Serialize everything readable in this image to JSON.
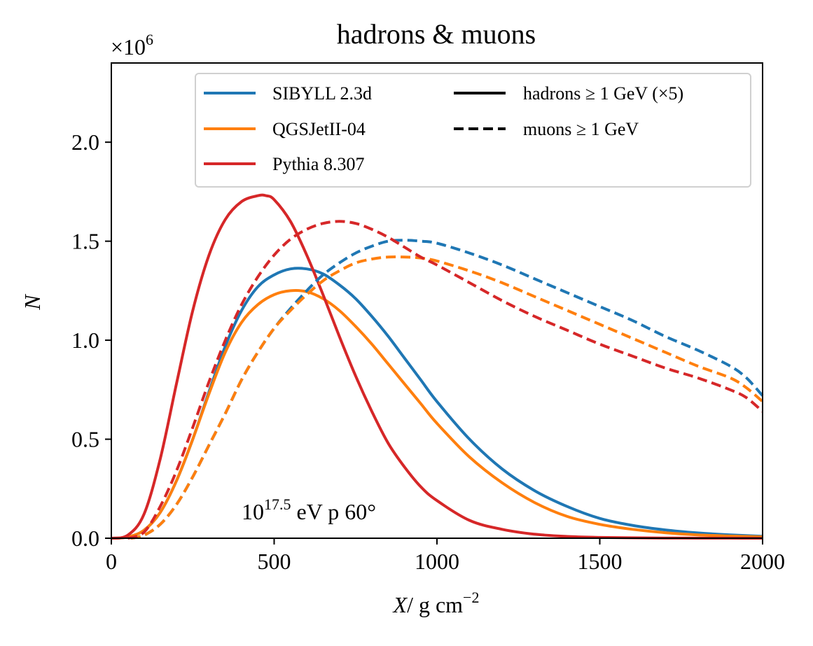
{
  "chart_data": {
    "type": "line",
    "title": "hadrons & muons",
    "xlabel": "X",
    "xlabel_unit": "/ g cm",
    "xlabel_unit_exp": "−2",
    "ylabel": "N",
    "offset_label": "×10",
    "offset_exp": "6",
    "xlim": [
      0,
      2000
    ],
    "ylim": [
      0,
      2.4
    ],
    "xticks": [
      0,
      500,
      1000,
      1500,
      2000
    ],
    "xtick_labels": [
      "0",
      "500",
      "1000",
      "1500",
      "2000"
    ],
    "yticks": [
      0,
      0.5,
      1.0,
      1.5,
      2.0
    ],
    "ytick_labels": [
      "0.0",
      "0.5",
      "1.0",
      "1.5",
      "2.0"
    ],
    "grid": false,
    "legend_placement": "top-right",
    "annotation": {
      "base": "10",
      "exp": "17.5",
      "rest": " eV p 60°"
    },
    "legend_models": [
      {
        "label": "SIBYLL 2.3d",
        "color": "#1f77b4"
      },
      {
        "label": "QGSJetII-04",
        "color": "#ff7f0e"
      },
      {
        "label": "Pythia 8.307",
        "color": "#d62728"
      }
    ],
    "legend_styles": [
      {
        "label": "hadrons ≥ 1 GeV (×5)",
        "dash": "solid"
      },
      {
        "label": "muons ≥ 1 GeV",
        "dash": "dashed"
      }
    ],
    "series": [
      {
        "name": "SIBYLL 2.3d hadrons",
        "color": "#1f77b4",
        "dash": "solid",
        "x": [
          0,
          50,
          100,
          150,
          200,
          250,
          300,
          350,
          400,
          450,
          500,
          550,
          600,
          650,
          700,
          750,
          800,
          850,
          900,
          950,
          1000,
          1100,
          1200,
          1300,
          1400,
          1500,
          1600,
          1700,
          1800,
          1900,
          2000
        ],
        "y": [
          0,
          0.006,
          0.04,
          0.13,
          0.29,
          0.5,
          0.74,
          0.97,
          1.15,
          1.27,
          1.33,
          1.36,
          1.36,
          1.335,
          1.28,
          1.21,
          1.12,
          1.02,
          0.91,
          0.8,
          0.69,
          0.5,
          0.35,
          0.24,
          0.16,
          0.1,
          0.065,
          0.042,
          0.027,
          0.017,
          0.01
        ]
      },
      {
        "name": "QGSJetII-04 hadrons",
        "color": "#ff7f0e",
        "dash": "solid",
        "x": [
          0,
          50,
          100,
          150,
          200,
          250,
          300,
          350,
          400,
          450,
          500,
          550,
          600,
          650,
          700,
          750,
          800,
          850,
          900,
          950,
          1000,
          1100,
          1200,
          1300,
          1400,
          1500,
          1600,
          1700,
          1800,
          1900,
          2000
        ],
        "y": [
          0,
          0.006,
          0.04,
          0.13,
          0.29,
          0.5,
          0.73,
          0.94,
          1.09,
          1.18,
          1.23,
          1.25,
          1.245,
          1.21,
          1.15,
          1.07,
          0.98,
          0.88,
          0.78,
          0.68,
          0.58,
          0.41,
          0.28,
          0.18,
          0.11,
          0.07,
          0.045,
          0.028,
          0.017,
          0.011,
          0.007
        ]
      },
      {
        "name": "Pythia 8.307 hadrons",
        "color": "#d62728",
        "dash": "solid",
        "x": [
          0,
          50,
          100,
          150,
          200,
          250,
          300,
          350,
          400,
          450,
          475,
          500,
          550,
          600,
          650,
          700,
          750,
          800,
          850,
          900,
          950,
          1000,
          1100,
          1200,
          1300,
          1400,
          1500,
          1600,
          1700,
          1800,
          1900,
          2000
        ],
        "y": [
          0,
          0.015,
          0.12,
          0.4,
          0.78,
          1.15,
          1.43,
          1.61,
          1.7,
          1.73,
          1.73,
          1.71,
          1.6,
          1.43,
          1.23,
          1.02,
          0.82,
          0.64,
          0.48,
          0.36,
          0.26,
          0.19,
          0.09,
          0.045,
          0.02,
          0.009,
          0.004,
          0.002,
          0.001,
          0.0005,
          0.0002,
          0
        ]
      },
      {
        "name": "SIBYLL 2.3d muons",
        "color": "#1f77b4",
        "dash": "dashed",
        "x": [
          60,
          100,
          150,
          200,
          250,
          300,
          350,
          400,
          450,
          500,
          550,
          600,
          650,
          700,
          750,
          800,
          850,
          900,
          950,
          1000,
          1100,
          1200,
          1300,
          1400,
          1500,
          1600,
          1700,
          1800,
          1900,
          1950,
          2000
        ],
        "y": [
          0,
          0.015,
          0.07,
          0.17,
          0.31,
          0.47,
          0.63,
          0.8,
          0.94,
          1.06,
          1.16,
          1.25,
          1.33,
          1.39,
          1.44,
          1.475,
          1.5,
          1.505,
          1.5,
          1.49,
          1.44,
          1.38,
          1.31,
          1.24,
          1.17,
          1.1,
          1.02,
          0.95,
          0.87,
          0.81,
          0.72
        ]
      },
      {
        "name": "QGSJetII-04 muons",
        "color": "#ff7f0e",
        "dash": "dashed",
        "x": [
          60,
          100,
          150,
          200,
          250,
          300,
          350,
          400,
          450,
          500,
          550,
          600,
          650,
          700,
          750,
          800,
          850,
          900,
          950,
          1000,
          1100,
          1200,
          1300,
          1400,
          1500,
          1600,
          1700,
          1800,
          1900,
          1950,
          2000
        ],
        "y": [
          0,
          0.015,
          0.07,
          0.17,
          0.31,
          0.47,
          0.63,
          0.8,
          0.94,
          1.06,
          1.15,
          1.23,
          1.3,
          1.35,
          1.39,
          1.41,
          1.42,
          1.42,
          1.415,
          1.4,
          1.35,
          1.29,
          1.22,
          1.15,
          1.08,
          1.01,
          0.94,
          0.87,
          0.81,
          0.76,
          0.69
        ]
      },
      {
        "name": "Pythia 8.307 muons",
        "color": "#d62728",
        "dash": "dashed",
        "x": [
          50,
          100,
          150,
          200,
          250,
          300,
          350,
          400,
          450,
          500,
          550,
          600,
          650,
          700,
          750,
          800,
          850,
          900,
          950,
          1000,
          1100,
          1200,
          1300,
          1400,
          1500,
          1600,
          1700,
          1800,
          1900,
          1950,
          2000
        ],
        "y": [
          0,
          0.03,
          0.16,
          0.34,
          0.56,
          0.79,
          1.0,
          1.18,
          1.32,
          1.43,
          1.51,
          1.56,
          1.59,
          1.6,
          1.59,
          1.56,
          1.52,
          1.47,
          1.42,
          1.38,
          1.29,
          1.2,
          1.12,
          1.05,
          0.98,
          0.92,
          0.86,
          0.81,
          0.75,
          0.71,
          0.64
        ]
      }
    ]
  }
}
